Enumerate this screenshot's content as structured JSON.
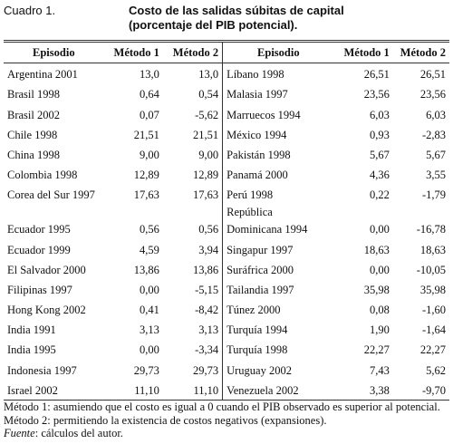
{
  "header": {
    "label": "Cuadro 1.",
    "title": [
      "Costo de las salidas súbitas de capital",
      "(porcentaje del PIB potencial)."
    ]
  },
  "table": {
    "columns": [
      "Episodio",
      "Método 1",
      "Método 2",
      "Episodio",
      "Método 1",
      "Método 2"
    ],
    "rows": [
      [
        "Argentina 2001",
        "13,0",
        "13,0",
        "Líbano 1998",
        "26,51",
        "26,51"
      ],
      [
        "Brasil 1998",
        "0,64",
        "0,54",
        "Malasia 1997",
        "23,56",
        "23,56"
      ],
      [
        "Brasil 2002",
        "0,07",
        "-5,62",
        "Marruecos 1994",
        "6,03",
        "6,03"
      ],
      [
        "Chile 1998",
        "21,51",
        "21,51",
        "México 1994",
        "0,93",
        "-2,83"
      ],
      [
        "China 1998",
        "9,00",
        "9,00",
        "Pakistán 1998",
        "5,67",
        "5,67"
      ],
      [
        "Colombia 1998",
        "12,89",
        "12,89",
        "Panamá 2000",
        "4,36",
        "3,55"
      ],
      [
        "Corea del Sur 1997",
        "17,63",
        "17,63",
        "Perú 1998",
        "0,22",
        "-1,79"
      ],
      [
        "Ecuador 1995",
        "0,56",
        "0,56",
        "República\nDominicana 1994",
        "0,00",
        "-16,78"
      ],
      [
        "Ecuador 1999",
        "4,59",
        "3,94",
        "Singapur 1997",
        "18,63",
        "18,63"
      ],
      [
        "El Salvador 2000",
        "13,86",
        "13,86",
        "Suráfrica 2000",
        "0,00",
        "-10,05"
      ],
      [
        "Filipinas 1997",
        "0,00",
        "-5,15",
        "Tailandia 1997",
        "35,98",
        "35,98"
      ],
      [
        "Hong Kong 2002",
        "0,41",
        "-8,42",
        "Túnez 2000",
        "0,08",
        "-1,60"
      ],
      [
        "India 1991",
        "3,13",
        "3,13",
        "Turquía 1994",
        "1,90",
        "-1,64"
      ],
      [
        "India 1995",
        "0,00",
        "-3,34",
        "Turquía 1998",
        "22,27",
        "22,27"
      ],
      [
        "Indonesia 1997",
        "29,73",
        "29,73",
        "Uruguay 2002",
        "7,43",
        "5,62"
      ],
      [
        "Israel 2002",
        "11,10",
        "11,10",
        "Venezuela 2002",
        "3,38",
        "-9,70"
      ]
    ]
  },
  "notes": [
    {
      "text": "Método 1: asumiendo que el costo es igual a 0 cuando el PIB observado es superior al potencial."
    },
    {
      "text": "Método 2: permitiendo la existencia de costos negativos (expansiones)."
    },
    {
      "label": "Fuente",
      "text": ": cálculos del autor."
    }
  ]
}
